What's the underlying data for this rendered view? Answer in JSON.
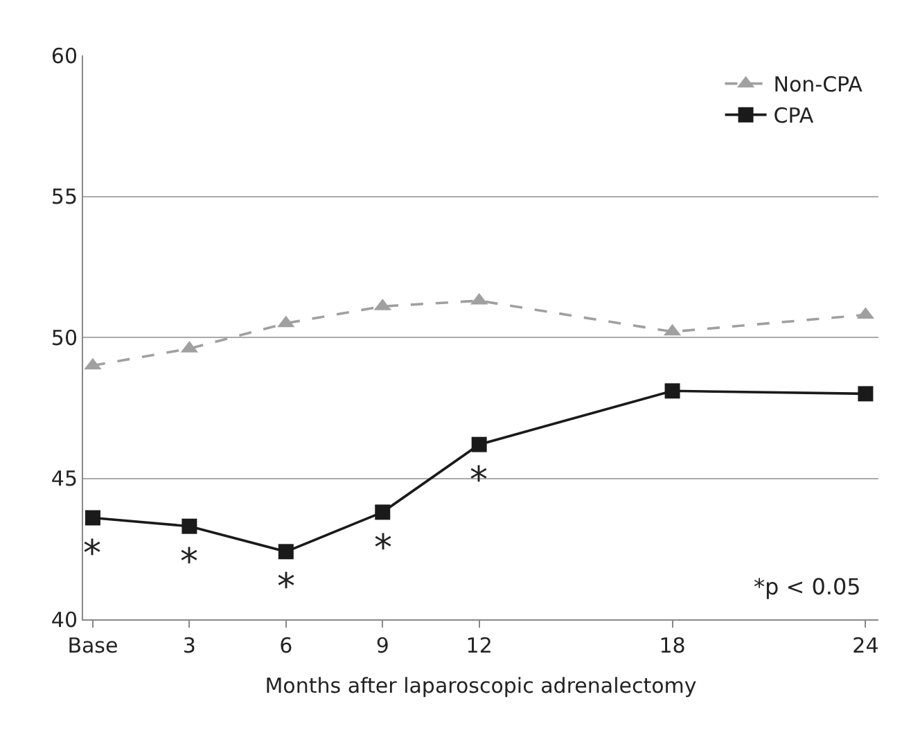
{
  "chart_data": {
    "type": "line",
    "xlabel": "Months after laparoscopic adrenalectomy",
    "x": [
      0,
      3,
      6,
      9,
      12,
      18,
      24
    ],
    "series": [
      {
        "name": "Non-CPA",
        "color": "#a0a0a0",
        "values": [
          49.0,
          49.6,
          50.5,
          51.1,
          51.3,
          50.2,
          50.8
        ],
        "marker": "triangle",
        "line_style": "dashed"
      },
      {
        "name": "CPA",
        "color": "#1a1a1a",
        "values": [
          43.6,
          43.3,
          42.4,
          43.8,
          46.2,
          48.1,
          48.0
        ],
        "marker": "square",
        "line_style": "solid"
      }
    ],
    "xlim": [
      -0.3,
      24.4
    ],
    "xticks": [
      {
        "value": 0,
        "label": "Base"
      },
      3,
      6,
      9,
      12,
      18,
      24
    ],
    "ylim": [
      40,
      60
    ],
    "yticks": [
      40,
      45,
      50,
      55,
      60
    ],
    "grid": "y",
    "legend": "top right",
    "annotations": [
      {
        "text": "*",
        "x": 0,
        "y": 43.6
      },
      {
        "text": "*",
        "x": 3,
        "y": 43.3
      },
      {
        "text": "*",
        "x": 6,
        "y": 42.4
      },
      {
        "text": "*",
        "x": 9,
        "y": 43.8
      },
      {
        "text": "*",
        "x": 12,
        "y": 46.2
      },
      "*p < 0.05"
    ]
  }
}
